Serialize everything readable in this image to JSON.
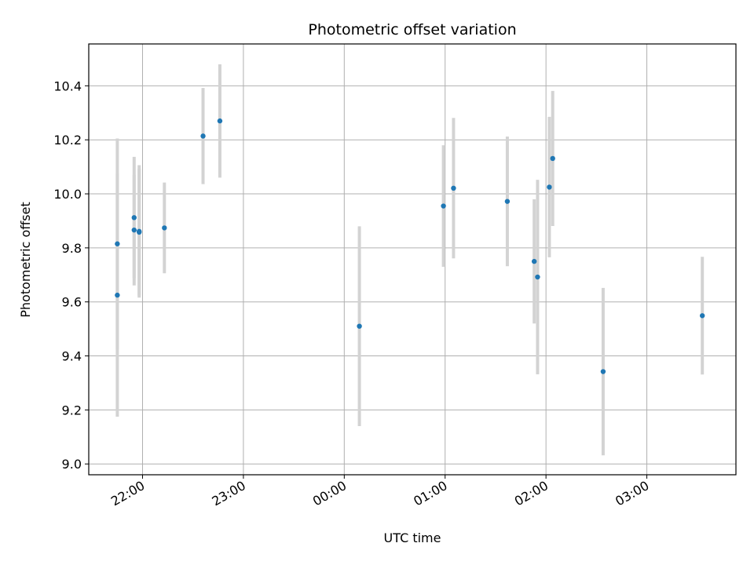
{
  "chart_data": {
    "type": "scatter",
    "title": "Photometric offset variation",
    "xlabel": "UTC time",
    "ylabel": "Photometric offset",
    "x_is_time": true,
    "xlim": [
      "21:28",
      "03:53"
    ],
    "ylim": [
      8.96,
      10.555
    ],
    "x_ticks": [
      "22:00",
      "23:00",
      "00:00",
      "01:00",
      "02:00",
      "03:00"
    ],
    "y_ticks": [
      9.0,
      9.2,
      9.4,
      9.6,
      9.8,
      10.0,
      10.2,
      10.4
    ],
    "y_tick_labels": [
      "9.0",
      "9.2",
      "9.4",
      "9.6",
      "9.8",
      "10.0",
      "10.2",
      "10.4"
    ],
    "grid": true,
    "colors": {
      "point": "#1f77b4",
      "errorbar": "#d3d3d3",
      "grid": "#b0b0b0"
    },
    "series": [
      {
        "points": [
          {
            "x": "21:45",
            "y": 9.815,
            "err": 0.39
          },
          {
            "x": "21:45",
            "y": 9.625,
            "err": 0.45
          },
          {
            "x": "21:55",
            "y": 9.912,
            "err": 0.225
          },
          {
            "x": "21:55",
            "y": 9.866,
            "err": 0.205
          },
          {
            "x": "21:58",
            "y": 9.861,
            "err": 0.245
          },
          {
            "x": "21:58",
            "y": 9.858,
            "err": 0.235
          },
          {
            "x": "22:13",
            "y": 9.874,
            "err": 0.168
          },
          {
            "x": "22:36",
            "y": 10.214,
            "err": 0.178
          },
          {
            "x": "22:46",
            "y": 10.27,
            "err": 0.21
          },
          {
            "x": "00:09",
            "y": 9.51,
            "err": 0.37
          },
          {
            "x": "00:59",
            "y": 9.955,
            "err": 0.225
          },
          {
            "x": "01:05",
            "y": 10.021,
            "err": 0.26
          },
          {
            "x": "01:37",
            "y": 9.972,
            "err": 0.24
          },
          {
            "x": "01:53",
            "y": 9.75,
            "err": 0.23
          },
          {
            "x": "01:55",
            "y": 9.692,
            "err": 0.36
          },
          {
            "x": "02:02",
            "y": 10.025,
            "err": 0.26
          },
          {
            "x": "02:04",
            "y": 10.131,
            "err": 0.25
          },
          {
            "x": "02:34",
            "y": 9.342,
            "err": 0.31
          },
          {
            "x": "03:33",
            "y": 9.549,
            "err": 0.218
          }
        ]
      }
    ]
  }
}
